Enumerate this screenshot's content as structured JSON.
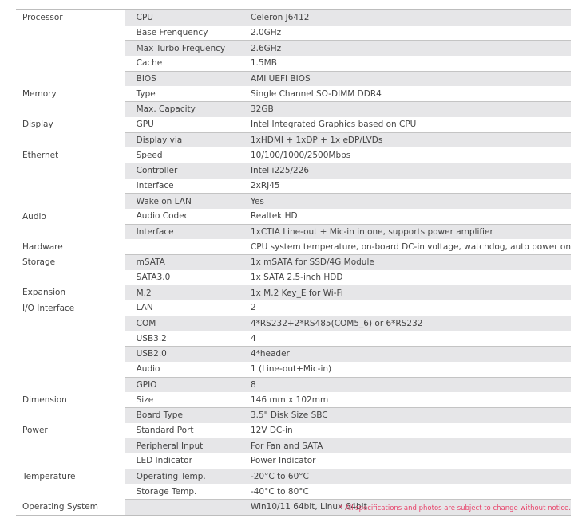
{
  "rows": [
    [
      "Processor",
      "CPU",
      "Celeron J6412"
    ],
    [
      "",
      "Base Frenquency",
      "2.0GHz"
    ],
    [
      "",
      "Max Turbo Frequency",
      "2.6GHz"
    ],
    [
      "",
      "Cache",
      "1.5MB"
    ],
    [
      "",
      "BIOS",
      "AMI UEFI BIOS"
    ],
    [
      "Memory",
      "Type",
      "Single Channel SO-DIMM DDR4"
    ],
    [
      "",
      "Max. Capacity",
      "32GB"
    ],
    [
      "Display",
      "GPU",
      "Intel Integrated Graphics based on CPU"
    ],
    [
      "",
      "Display via",
      "1xHDMI + 1xDP + 1x eDP/LVDs"
    ],
    [
      "Ethernet",
      "Speed",
      "10/100/1000/2500Mbps"
    ],
    [
      "",
      "Controller",
      "Intel i225/226"
    ],
    [
      "",
      "Interface",
      "2xRJ45"
    ],
    [
      "",
      "Wake on LAN",
      "Yes"
    ],
    [
      "Audio",
      "Audio Codec",
      "Realtek HD"
    ],
    [
      "",
      "Interface",
      "1xCTIA Line-out + Mic-in in one, supports power amplifier"
    ],
    [
      "Hardware",
      "",
      "CPU system temperature, on-board DC-in voltage, watchdog, auto power on"
    ],
    [
      "Storage",
      "mSATA",
      "1x mSATA for SSD/4G Module"
    ],
    [
      "",
      "SATA3.0",
      "1x SATA 2.5-inch HDD"
    ],
    [
      "Expansion",
      "M.2",
      "1x M.2 Key_E for Wi-Fi"
    ],
    [
      "I/O Interface",
      "LAN",
      "2"
    ],
    [
      "",
      "COM",
      "4*RS232+2*RS485(COM5_6) or 6*RS232"
    ],
    [
      "",
      "USB3.2",
      "4"
    ],
    [
      "",
      "USB2.0",
      "4*header"
    ],
    [
      "",
      "Audio",
      "1 (Line-out+Mic-in)"
    ],
    [
      "",
      "GPIO",
      "8"
    ],
    [
      "Dimension",
      "Size",
      "146 mm x 102mm"
    ],
    [
      "",
      "Board Type",
      "3.5\" Disk Size SBC"
    ],
    [
      "Power",
      "Standard Port",
      "12V DC-in"
    ],
    [
      "",
      "Peripheral Input",
      "For Fan and SATA"
    ],
    [
      "",
      "LED Indicator",
      "Power Indicator"
    ],
    [
      "Temperature",
      "Operating Temp.",
      "-20°C to 60°C"
    ],
    [
      "",
      "Storage Temp.",
      "-40°C to 80°C"
    ],
    [
      "Operating System",
      "",
      "Win10/11 64bit, Linux 64bit"
    ]
  ],
  "note": "* All specifications and photos are subject to change without notice.",
  "colors": {
    "shade": "#e6e6e8",
    "note": "#e8426a"
  }
}
